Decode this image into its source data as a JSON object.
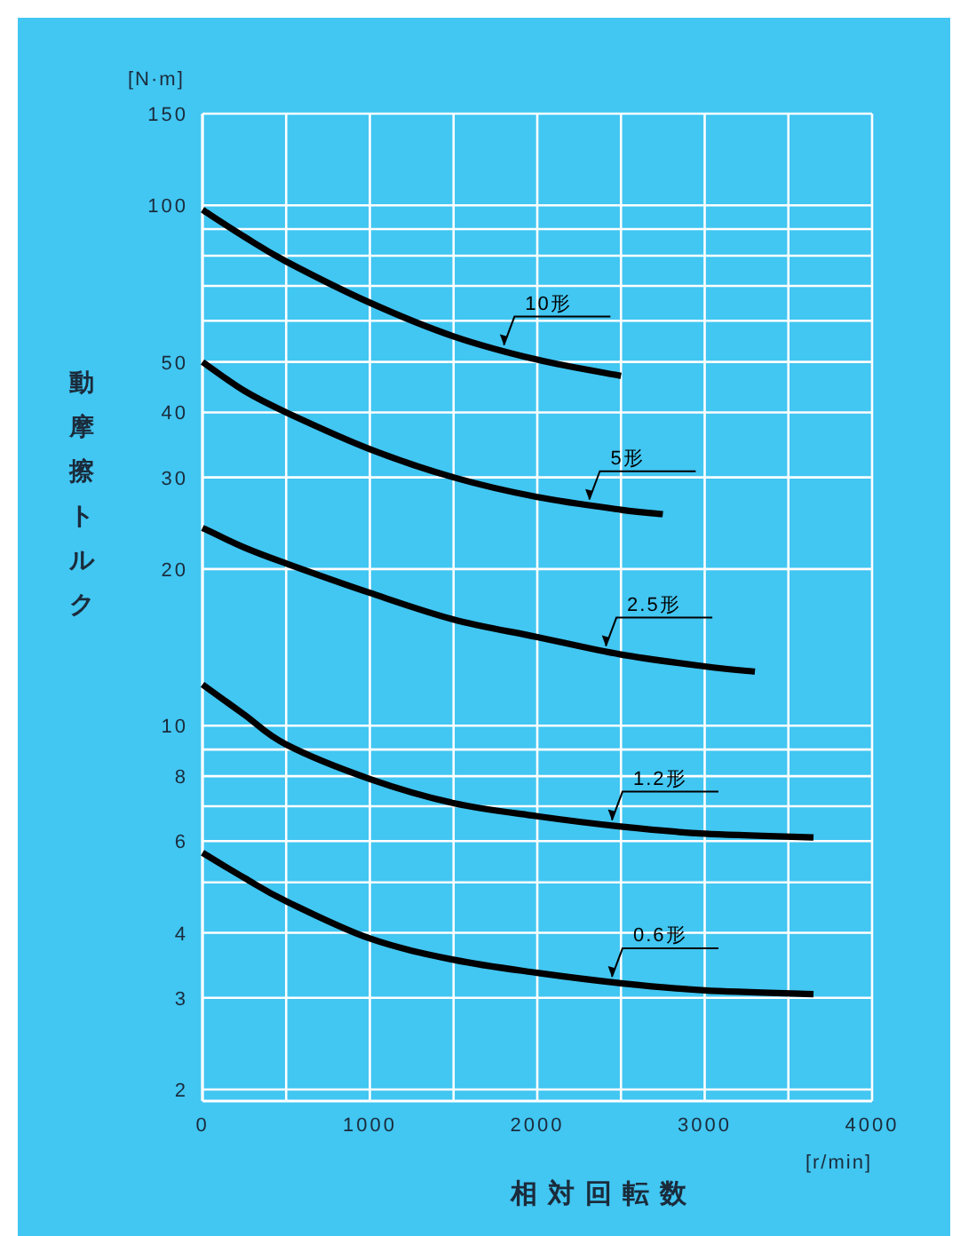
{
  "chart_data": {
    "type": "line",
    "xlabel": "相対回転数",
    "ylabel": "動摩擦トルク",
    "log": "y",
    "grid": true,
    "marker": "none",
    "line_style": "solid",
    "xlim": [
      0,
      4000
    ],
    "xticks": [
      0,
      {
        "value": 500,
        "label": null
      },
      1000,
      {
        "value": 1500,
        "label": null
      },
      2000,
      {
        "value": 2500,
        "label": null
      },
      3000,
      {
        "value": 3500,
        "label": null
      },
      4000
    ],
    "ylim": [
      1.9,
      150
    ],
    "yticks": [
      2,
      3,
      4,
      {
        "value": 5,
        "label": null
      },
      6,
      {
        "value": 7,
        "label": null
      },
      8,
      {
        "value": 9,
        "label": null
      },
      10,
      20,
      30,
      40,
      50,
      {
        "value": 60,
        "label": null
      },
      {
        "value": 70,
        "label": null
      },
      {
        "value": 80,
        "label": null
      },
      {
        "value": 90,
        "label": null
      },
      100,
      150
    ],
    "series": [
      {
        "name": "10形",
        "color": "#000000",
        "x": [
          0,
          250,
          500,
          1000,
          1500,
          2000,
          2500
        ],
        "values": [
          98,
          87,
          78,
          65,
          56,
          50.5,
          47
        ]
      },
      {
        "name": "5形",
        "color": "#000000",
        "x": [
          0,
          250,
          500,
          1000,
          1500,
          2000,
          2500,
          2750
        ],
        "values": [
          50,
          44,
          40,
          34,
          30,
          27.5,
          26,
          25.5
        ]
      },
      {
        "name": "2.5形",
        "color": "#000000",
        "x": [
          0,
          250,
          500,
          1000,
          1500,
          2000,
          2500,
          3000,
          3300
        ],
        "values": [
          24,
          22,
          20.5,
          18,
          16,
          14.8,
          13.7,
          13,
          12.7
        ]
      },
      {
        "name": "1.2形",
        "color": "#000000",
        "x": [
          0,
          250,
          500,
          1000,
          1500,
          2000,
          2500,
          3000,
          3650
        ],
        "values": [
          12,
          10.5,
          9.2,
          7.9,
          7.1,
          6.7,
          6.4,
          6.2,
          6.1
        ]
      },
      {
        "name": "0.6形",
        "color": "#000000",
        "x": [
          0,
          250,
          500,
          1000,
          1500,
          2000,
          2500,
          3000,
          3650
        ],
        "values": [
          5.7,
          5.1,
          4.6,
          3.9,
          3.55,
          3.35,
          3.2,
          3.1,
          3.05
        ]
      }
    ],
    "annotations": [
      "[N·m]",
      "[r/min]"
    ]
  }
}
